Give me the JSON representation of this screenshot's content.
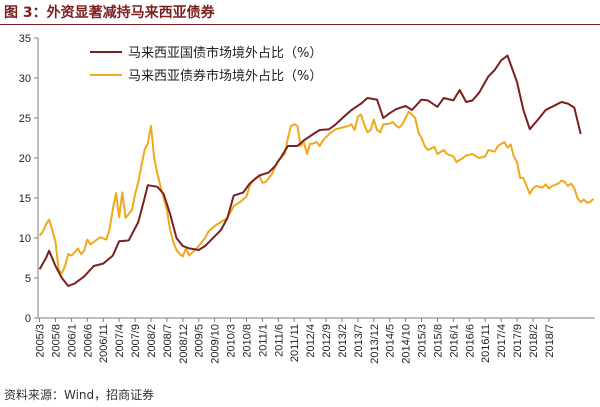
{
  "figure_title": "图 3：外资显著减持马来西亚债券",
  "source_note": "资料来源：Wind，招商证券",
  "chart_data": {
    "type": "line",
    "ylim": [
      0,
      35
    ],
    "y_ticks": [
      "0",
      "5",
      "10",
      "15",
      "20",
      "25",
      "30",
      "35"
    ],
    "x_tick_labels": [
      "2005/3",
      "2005/8",
      "2006/1",
      "2006/6",
      "2006/11",
      "2007/4",
      "2007/9",
      "2008/2",
      "2008/7",
      "2008/12",
      "2009/5",
      "2009/10",
      "2010/3",
      "2010/8",
      "2011/1",
      "2011/6",
      "2011/11",
      "2012/4",
      "2012/9",
      "2013/2",
      "2013/7",
      "2013/12",
      "2014/5",
      "2014/10",
      "2015/3",
      "2015/8",
      "2016/1",
      "2016/6",
      "2016/11",
      "2017/4",
      "2017/9",
      "2018/2",
      "2018/7"
    ],
    "legend_position": "top-left",
    "grid": false,
    "series": [
      {
        "name": "马来西亚国债市场境外占比（%）",
        "color": "#7b1f1f",
        "points": [
          [
            0,
            6.1
          ],
          [
            2,
            7.5
          ],
          [
            3,
            8.4
          ],
          [
            5,
            6.5
          ],
          [
            7,
            5.0
          ],
          [
            9,
            4.0
          ],
          [
            11,
            4.3
          ],
          [
            14,
            5.2
          ],
          [
            17,
            6.5
          ],
          [
            20,
            6.8
          ],
          [
            23,
            7.8
          ],
          [
            25,
            9.6
          ],
          [
            28,
            9.7
          ],
          [
            31,
            12.0
          ],
          [
            33,
            15.0
          ],
          [
            34,
            16.6
          ],
          [
            37,
            16.4
          ],
          [
            39,
            15.5
          ],
          [
            41,
            13.0
          ],
          [
            43,
            10.0
          ],
          [
            45,
            9.0
          ],
          [
            47,
            8.7
          ],
          [
            50,
            8.5
          ],
          [
            52,
            9.0
          ],
          [
            54,
            9.8
          ],
          [
            57,
            11.0
          ],
          [
            59,
            12.5
          ],
          [
            61,
            15.3
          ],
          [
            64,
            15.7
          ],
          [
            66,
            16.8
          ],
          [
            69,
            17.8
          ],
          [
            72,
            18.2
          ],
          [
            74,
            19.0
          ],
          [
            76,
            20.2
          ],
          [
            78,
            21.5
          ],
          [
            81,
            21.5
          ],
          [
            83,
            22.2
          ],
          [
            86,
            23.0
          ],
          [
            88,
            23.5
          ],
          [
            91,
            23.6
          ],
          [
            93,
            24.2
          ],
          [
            96,
            25.3
          ],
          [
            98,
            26.0
          ],
          [
            101,
            26.8
          ],
          [
            103,
            27.5
          ],
          [
            106,
            27.3
          ],
          [
            108,
            25.0
          ],
          [
            110,
            25.6
          ],
          [
            112,
            26.1
          ],
          [
            115,
            26.5
          ],
          [
            117,
            26.0
          ],
          [
            120,
            27.3
          ],
          [
            122,
            27.2
          ],
          [
            125,
            26.4
          ],
          [
            127,
            27.5
          ],
          [
            130,
            27.2
          ],
          [
            132,
            28.5
          ],
          [
            134,
            27.0
          ],
          [
            136,
            27.2
          ],
          [
            138,
            28.1
          ],
          [
            141,
            30.2
          ],
          [
            143,
            31.0
          ],
          [
            145,
            32.2
          ],
          [
            147,
            32.8
          ],
          [
            150,
            29.5
          ],
          [
            152,
            26.0
          ],
          [
            154,
            23.6
          ],
          [
            157,
            25.0
          ],
          [
            159,
            26.0
          ],
          [
            161,
            26.4
          ],
          [
            164,
            27.0
          ],
          [
            166,
            26.8
          ],
          [
            168,
            26.3
          ],
          [
            170,
            23.0
          ]
        ]
      },
      {
        "name": "马来西亚债券市场境外占比（%）",
        "color": "#f0a81c",
        "points": [
          [
            0,
            10.3
          ],
          [
            1,
            10.8
          ],
          [
            2,
            11.7
          ],
          [
            3,
            12.3
          ],
          [
            4,
            11.0
          ],
          [
            5,
            9.5
          ],
          [
            6,
            6.0
          ],
          [
            7,
            5.6
          ],
          [
            8,
            6.5
          ],
          [
            9,
            8.0
          ],
          [
            10,
            7.8
          ],
          [
            11,
            8.2
          ],
          [
            12,
            8.7
          ],
          [
            13,
            8.0
          ],
          [
            14,
            8.4
          ],
          [
            15,
            9.8
          ],
          [
            16,
            9.2
          ],
          [
            17,
            9.5
          ],
          [
            19,
            10.1
          ],
          [
            21,
            9.8
          ],
          [
            22,
            11.1
          ],
          [
            23,
            13.6
          ],
          [
            24,
            15.6
          ],
          [
            25,
            12.6
          ],
          [
            26,
            15.7
          ],
          [
            27,
            12.5
          ],
          [
            28,
            13.0
          ],
          [
            29,
            13.5
          ],
          [
            30,
            15.5
          ],
          [
            31,
            17.0
          ],
          [
            32,
            19.0
          ],
          [
            33,
            21.0
          ],
          [
            34,
            21.8
          ],
          [
            35,
            24.0
          ],
          [
            36,
            20.0
          ],
          [
            37,
            18.0
          ],
          [
            38,
            16.5
          ],
          [
            39,
            15.0
          ],
          [
            40,
            13.5
          ],
          [
            41,
            11.0
          ],
          [
            42,
            9.5
          ],
          [
            43,
            8.5
          ],
          [
            44,
            8.0
          ],
          [
            45,
            7.7
          ],
          [
            46,
            8.7
          ],
          [
            47,
            7.8
          ],
          [
            48,
            8.2
          ],
          [
            50,
            9.0
          ],
          [
            52,
            10.0
          ],
          [
            53,
            10.8
          ],
          [
            55,
            11.5
          ],
          [
            57,
            12.0
          ],
          [
            59,
            12.5
          ],
          [
            61,
            14.0
          ],
          [
            63,
            14.5
          ],
          [
            65,
            15.2
          ],
          [
            66,
            16.5
          ],
          [
            67,
            17.2
          ],
          [
            69,
            17.8
          ],
          [
            70,
            16.9
          ],
          [
            71,
            17.0
          ],
          [
            73,
            18.0
          ],
          [
            75,
            19.7
          ],
          [
            77,
            20.5
          ],
          [
            78,
            22.5
          ],
          [
            79,
            24.0
          ],
          [
            80,
            24.2
          ],
          [
            81,
            24.0
          ],
          [
            82,
            21.5
          ],
          [
            83,
            22.0
          ],
          [
            84,
            20.5
          ],
          [
            85,
            21.8
          ],
          [
            86,
            21.8
          ],
          [
            87,
            22.0
          ],
          [
            88,
            21.5
          ],
          [
            89,
            22.2
          ],
          [
            91,
            23.0
          ],
          [
            93,
            23.6
          ],
          [
            95,
            23.8
          ],
          [
            97,
            24.0
          ],
          [
            98,
            24.2
          ],
          [
            99,
            23.5
          ],
          [
            100,
            25.2
          ],
          [
            101,
            25.4
          ],
          [
            102,
            24.2
          ],
          [
            103,
            23.2
          ],
          [
            104,
            23.5
          ],
          [
            105,
            24.8
          ],
          [
            106,
            23.5
          ],
          [
            107,
            23.2
          ],
          [
            108,
            24.2
          ],
          [
            110,
            24.3
          ],
          [
            111,
            24.5
          ],
          [
            112,
            24.0
          ],
          [
            113,
            23.8
          ],
          [
            114,
            24.2
          ],
          [
            115,
            25.0
          ],
          [
            116,
            25.8
          ],
          [
            117,
            25.4
          ],
          [
            118,
            25.0
          ],
          [
            119,
            23.2
          ],
          [
            120,
            22.5
          ],
          [
            121,
            21.5
          ],
          [
            122,
            21.0
          ],
          [
            124,
            21.4
          ],
          [
            125,
            20.5
          ],
          [
            127,
            21.0
          ],
          [
            128,
            20.5
          ],
          [
            130,
            20.2
          ],
          [
            131,
            19.5
          ],
          [
            133,
            20.0
          ],
          [
            134,
            20.3
          ],
          [
            136,
            20.5
          ],
          [
            138,
            20.0
          ],
          [
            140,
            20.2
          ],
          [
            141,
            21.0
          ],
          [
            143,
            20.8
          ],
          [
            144,
            21.5
          ],
          [
            146,
            22.0
          ],
          [
            147,
            21.3
          ],
          [
            148,
            21.7
          ],
          [
            149,
            20.2
          ],
          [
            150,
            19.5
          ],
          [
            151,
            17.5
          ],
          [
            152,
            17.5
          ],
          [
            153,
            16.5
          ],
          [
            154,
            15.5
          ],
          [
            155,
            16.2
          ],
          [
            156,
            16.5
          ],
          [
            158,
            16.3
          ],
          [
            159,
            16.7
          ],
          [
            160,
            16.2
          ],
          [
            161,
            16.5
          ],
          [
            163,
            16.8
          ],
          [
            164,
            17.2
          ],
          [
            165,
            17.0
          ],
          [
            166,
            16.5
          ],
          [
            167,
            16.8
          ],
          [
            168,
            16.2
          ],
          [
            169,
            15.0
          ],
          [
            170,
            14.5
          ],
          [
            171,
            14.8
          ],
          [
            172,
            14.4
          ],
          [
            173,
            14.5
          ],
          [
            174,
            14.9
          ]
        ]
      }
    ]
  }
}
